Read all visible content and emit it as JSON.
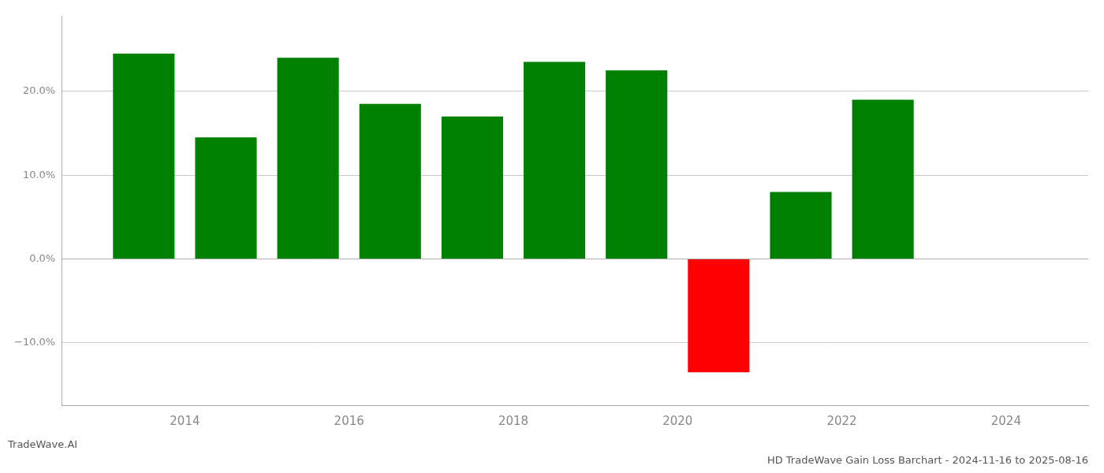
{
  "chart_data": {
    "type": "bar",
    "title": "HD TradeWave Gain Loss Barchart - 2024-11-16 to 2025-08-16",
    "annotations": [
      "TradeWave.AI"
    ],
    "x": [
      2013.5,
      2014.5,
      2015.5,
      2016.5,
      2017.5,
      2018.5,
      2019.5,
      2020.5,
      2021.5,
      2022.5
    ],
    "values": [
      24.5,
      14.5,
      24.0,
      18.5,
      17.0,
      23.5,
      22.5,
      -13.5,
      8.0,
      19.0
    ],
    "colors": [
      "#008000",
      "#008000",
      "#008000",
      "#008000",
      "#008000",
      "#008000",
      "#008000",
      "#ff0000",
      "#008000",
      "#008000"
    ],
    "xlim": [
      2012.5,
      2025.0
    ],
    "xticks": [
      2014,
      2016,
      2018,
      2020,
      2022,
      2024
    ],
    "ylim": [
      -17.5,
      29
    ],
    "yticks": [
      {
        "value": -10.0,
        "label": "−10.0%"
      },
      {
        "value": 0.0,
        "label": "0.0%"
      },
      {
        "value": 10.0,
        "label": "10.0%"
      },
      {
        "value": 20.0,
        "label": "20.0%"
      }
    ],
    "grid": true
  }
}
